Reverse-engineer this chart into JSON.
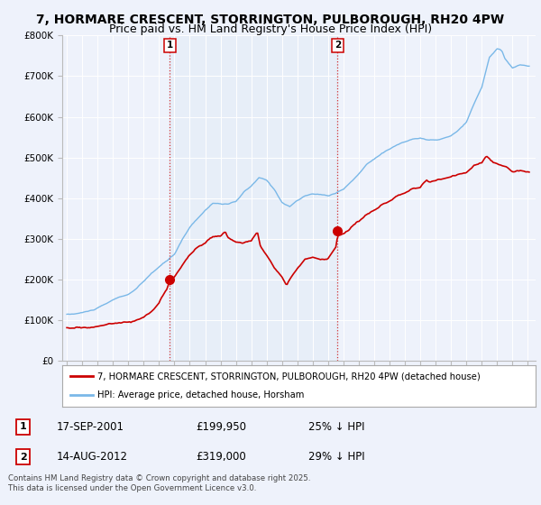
{
  "title": "7, HORMARE CRESCENT, STORRINGTON, PULBOROUGH, RH20 4PW",
  "subtitle": "Price paid vs. HM Land Registry's House Price Index (HPI)",
  "title_fontsize": 10,
  "subtitle_fontsize": 9,
  "background_color": "#eef2fb",
  "plot_bg_color": "#eef2fb",
  "ylim": [
    0,
    800000
  ],
  "yticks": [
    0,
    100000,
    200000,
    300000,
    400000,
    500000,
    600000,
    700000,
    800000
  ],
  "ytick_labels": [
    "£0",
    "£100K",
    "£200K",
    "£300K",
    "£400K",
    "£500K",
    "£600K",
    "£700K",
    "£800K"
  ],
  "xlim_start": 1994.7,
  "xlim_end": 2025.5,
  "xticks": [
    1995,
    1996,
    1997,
    1998,
    1999,
    2000,
    2001,
    2002,
    2003,
    2004,
    2005,
    2006,
    2007,
    2008,
    2009,
    2010,
    2011,
    2012,
    2013,
    2014,
    2015,
    2016,
    2017,
    2018,
    2019,
    2020,
    2021,
    2022,
    2023,
    2024,
    2025
  ],
  "hpi_color": "#7ab8e8",
  "price_color": "#cc0000",
  "marker_color": "#cc0000",
  "shade_color": "#dce8f5",
  "sale1_x": 2001.71,
  "sale1_y": 199950,
  "sale2_x": 2012.62,
  "sale2_y": 319000,
  "sale1_date": "17-SEP-2001",
  "sale1_price": "£199,950",
  "sale1_pct": "25% ↓ HPI",
  "sale2_date": "14-AUG-2012",
  "sale2_price": "£319,000",
  "sale2_pct": "29% ↓ HPI",
  "legend_line1": "7, HORMARE CRESCENT, STORRINGTON, PULBOROUGH, RH20 4PW (detached house)",
  "legend_line2": "HPI: Average price, detached house, Horsham",
  "footnote": "Contains HM Land Registry data © Crown copyright and database right 2025.\nThis data is licensed under the Open Government Licence v3.0."
}
